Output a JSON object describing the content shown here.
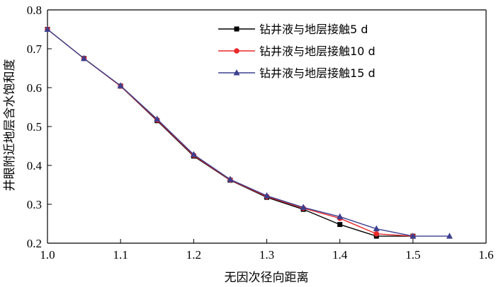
{
  "chart_data": {
    "type": "line",
    "title": "",
    "xlabel": "无因次径向距离",
    "ylabel": "井眼附近地层含水饱和度",
    "xlim": [
      1.0,
      1.6
    ],
    "ylim": [
      0.2,
      0.8
    ],
    "x_ticks": [
      "1.0",
      "1.1",
      "1.2",
      "1.3",
      "1.4",
      "1.5",
      "1.6"
    ],
    "y_ticks": [
      "0.2",
      "0.3",
      "0.4",
      "0.5",
      "0.6",
      "0.7",
      "0.8"
    ],
    "grid": false,
    "legend_position": "top-right",
    "series": [
      {
        "name": "钻井液与地层接触5 d",
        "color": "#000000",
        "marker": "square",
        "x": [
          1.0,
          1.05,
          1.1,
          1.15,
          1.2,
          1.25,
          1.3,
          1.35,
          1.4,
          1.45,
          1.5
        ],
        "y": [
          0.75,
          0.675,
          0.604,
          0.515,
          0.424,
          0.362,
          0.318,
          0.287,
          0.248,
          0.218,
          0.218
        ]
      },
      {
        "name": "钻井液与地层接触10 d",
        "color": "#e8282b",
        "marker": "circle",
        "x": [
          1.0,
          1.05,
          1.1,
          1.15,
          1.2,
          1.25,
          1.3,
          1.35,
          1.4,
          1.45,
          1.5
        ],
        "y": [
          0.75,
          0.675,
          0.604,
          0.517,
          0.426,
          0.363,
          0.32,
          0.29,
          0.264,
          0.224,
          0.218
        ]
      },
      {
        "name": "钻井液与地层接触15 d",
        "color": "#3c3f8f",
        "marker": "triangle",
        "x": [
          1.0,
          1.05,
          1.1,
          1.15,
          1.2,
          1.25,
          1.3,
          1.35,
          1.4,
          1.45,
          1.5,
          1.55
        ],
        "y": [
          0.75,
          0.675,
          0.605,
          0.519,
          0.428,
          0.364,
          0.322,
          0.292,
          0.268,
          0.237,
          0.218,
          0.218
        ]
      }
    ]
  }
}
